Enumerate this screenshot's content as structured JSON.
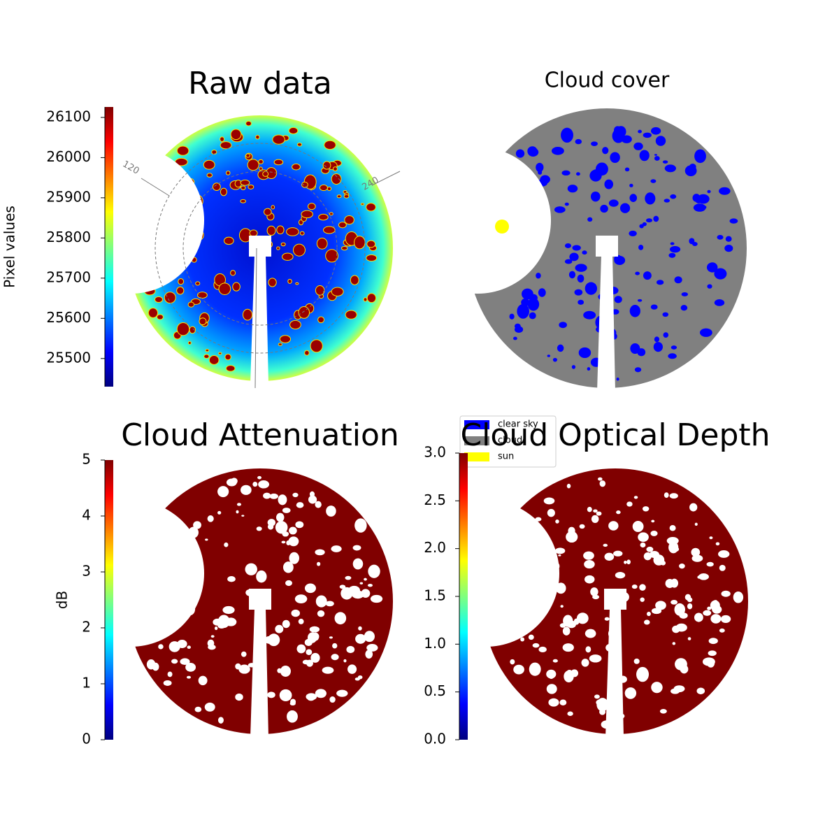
{
  "chart_data": [
    {
      "type": "image",
      "title": "Raw data",
      "colormap": "jet",
      "ylabel": "Pixel values",
      "ylim": [
        25430,
        26126
      ],
      "yticks": [
        25500,
        25600,
        25700,
        25800,
        25900,
        26000,
        26100
      ],
      "annotations": [
        "120",
        "240"
      ]
    },
    {
      "type": "image",
      "title": "Cloud cover",
      "series": [
        {
          "name": "clear sky",
          "color": "#0000ff"
        },
        {
          "name": "cloud",
          "color": "#808080"
        },
        {
          "name": "sun",
          "color": "#ffff00"
        }
      ]
    },
    {
      "type": "image",
      "title": "Cloud Attenuation",
      "colormap": "jet",
      "ylabel": "dB",
      "ylim": [
        0,
        5
      ],
      "yticks": [
        0,
        1,
        2,
        3,
        4,
        5
      ]
    },
    {
      "type": "image",
      "title": "Cloud Optical Depth",
      "colormap": "jet",
      "ylim": [
        0,
        3
      ],
      "yticks": [
        {
          "value": 0,
          "label": "0.0"
        },
        0.5,
        {
          "value": 1,
          "label": "1.0"
        },
        1.5,
        {
          "value": 2,
          "label": "2.0"
        },
        2.5,
        {
          "value": 3,
          "label": "3.0"
        }
      ]
    }
  ]
}
